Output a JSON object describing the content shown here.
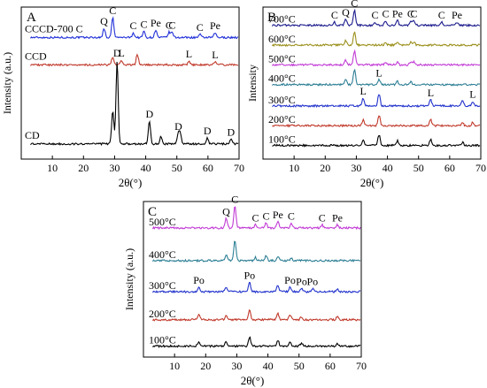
{
  "figure": {
    "panels": [
      {
        "letter": "A"
      },
      {
        "letter": "B"
      },
      {
        "letter": "C"
      }
    ]
  },
  "chart_data": [
    {
      "panel": "A",
      "type": "line",
      "xlabel": "2θ(°)",
      "ylabel": "Intensity (a.u.)",
      "xlim": [
        0,
        70
      ],
      "xticks": [
        10,
        20,
        30,
        40,
        50,
        60,
        70
      ],
      "series": [
        {
          "name": "CCCD-700 C",
          "color": "#1f2fd8",
          "baseline": 0.8,
          "peaks": [
            {
              "x": 26.6,
              "h": 0.06,
              "label": "Q"
            },
            {
              "x": 29.4,
              "h": 0.13,
              "label": "C"
            },
            {
              "x": 36.0,
              "h": 0.03,
              "label": "C"
            },
            {
              "x": 39.4,
              "h": 0.04,
              "label": "C"
            },
            {
              "x": 43.2,
              "h": 0.05,
              "label": "Pe"
            },
            {
              "x": 47.5,
              "h": 0.035,
              "label": "C"
            },
            {
              "x": 48.5,
              "h": 0.035,
              "label": "C"
            },
            {
              "x": 57.4,
              "h": 0.02,
              "label": "C"
            },
            {
              "x": 62.3,
              "h": 0.03,
              "label": "Pe"
            }
          ]
        },
        {
          "name": "CCD",
          "color": "#c0392b",
          "baseline": 0.62,
          "peaks": [
            {
              "x": 29.4,
              "h": 0.05
            },
            {
              "x": 32.2,
              "h": 0.03,
              "label": "L"
            },
            {
              "x": 37.3,
              "h": 0.07
            },
            {
              "x": 53.9,
              "h": 0.025,
              "label": "L"
            },
            {
              "x": 62.3,
              "h": 0.02,
              "label": "L"
            }
          ]
        },
        {
          "name": "CD",
          "color": "#000000",
          "baseline": 0.1,
          "peaks": [
            {
              "x": 29.4,
              "h": 0.22
            },
            {
              "x": 30.8,
              "h": 0.55,
              "label": "D"
            },
            {
              "x": 41.2,
              "h": 0.15,
              "label": "D"
            },
            {
              "x": 44.9,
              "h": 0.05
            },
            {
              "x": 50.5,
              "h": 0.07,
              "label": "D"
            },
            {
              "x": 51.1,
              "h": 0.06
            },
            {
              "x": 59.8,
              "h": 0.04,
              "label": "D"
            },
            {
              "x": 67.4,
              "h": 0.03,
              "label": "D"
            }
          ]
        }
      ],
      "curve_labels": [
        {
          "text": "CCCD-700 C",
          "series": 0
        },
        {
          "text": "CCD",
          "series": 1
        },
        {
          "text": "CD",
          "series": 2
        }
      ]
    },
    {
      "panel": "B",
      "type": "line",
      "xlabel": "2θ(°)",
      "ylabel": "Intensity",
      "xlim": [
        0,
        70
      ],
      "xticks": [
        10,
        20,
        30,
        40,
        50,
        60,
        70
      ],
      "series": [
        {
          "name": "700°C",
          "color": "#1a1a8c",
          "baseline": 0.88,
          "peaks": [
            {
              "x": 23.0,
              "h": 0.02,
              "label": "C"
            },
            {
              "x": 26.6,
              "h": 0.04,
              "label": "Q"
            },
            {
              "x": 29.4,
              "h": 0.1,
              "label": "C"
            },
            {
              "x": 36.0,
              "h": 0.02,
              "label": "C"
            },
            {
              "x": 39.4,
              "h": 0.03,
              "label": "C"
            },
            {
              "x": 43.2,
              "h": 0.03,
              "label": "Pe"
            },
            {
              "x": 47.5,
              "h": 0.03,
              "label": "C"
            },
            {
              "x": 48.5,
              "h": 0.03,
              "label": "C"
            },
            {
              "x": 57.4,
              "h": 0.02,
              "label": "C"
            },
            {
              "x": 62.3,
              "h": 0.02,
              "label": "Pe"
            }
          ]
        },
        {
          "name": "600°C",
          "color": "#9a8f1a",
          "baseline": 0.75,
          "peaks": [
            {
              "x": 26.6,
              "h": 0.03
            },
            {
              "x": 29.4,
              "h": 0.09
            },
            {
              "x": 39.4,
              "h": 0.02
            },
            {
              "x": 43.2,
              "h": 0.02
            },
            {
              "x": 47.5,
              "h": 0.02
            },
            {
              "x": 48.5,
              "h": 0.02
            }
          ]
        },
        {
          "name": "500°C",
          "color": "#c23bd6",
          "baseline": 0.62,
          "peaks": [
            {
              "x": 26.6,
              "h": 0.03
            },
            {
              "x": 29.4,
              "h": 0.09
            },
            {
              "x": 39.4,
              "h": 0.02
            },
            {
              "x": 43.2,
              "h": 0.02
            },
            {
              "x": 47.5,
              "h": 0.02
            },
            {
              "x": 48.5,
              "h": 0.02
            }
          ]
        },
        {
          "name": "400°C",
          "color": "#2d7f95",
          "baseline": 0.49,
          "peaks": [
            {
              "x": 26.6,
              "h": 0.04
            },
            {
              "x": 29.4,
              "h": 0.1
            },
            {
              "x": 37.3,
              "h": 0.03,
              "label": "L"
            },
            {
              "x": 43.2,
              "h": 0.02
            },
            {
              "x": 47.5,
              "h": 0.02
            }
          ]
        },
        {
          "name": "300°C",
          "color": "#2233cc",
          "baseline": 0.35,
          "peaks": [
            {
              "x": 32.2,
              "h": 0.05,
              "label": "L"
            },
            {
              "x": 37.3,
              "h": 0.08
            },
            {
              "x": 53.9,
              "h": 0.04,
              "label": "L"
            },
            {
              "x": 64.1,
              "h": 0.03
            },
            {
              "x": 67.4,
              "h": 0.03,
              "label": "L"
            }
          ]
        },
        {
          "name": "200°C",
          "color": "#c0392b",
          "baseline": 0.22,
          "peaks": [
            {
              "x": 32.2,
              "h": 0.04
            },
            {
              "x": 37.3,
              "h": 0.07
            },
            {
              "x": 53.9,
              "h": 0.04
            },
            {
              "x": 64.1,
              "h": 0.02
            },
            {
              "x": 67.4,
              "h": 0.02
            }
          ]
        },
        {
          "name": "100°C",
          "color": "#000000",
          "baseline": 0.09,
          "peaks": [
            {
              "x": 32.2,
              "h": 0.04
            },
            {
              "x": 37.3,
              "h": 0.07
            },
            {
              "x": 43.2,
              "h": 0.03
            },
            {
              "x": 53.9,
              "h": 0.04
            },
            {
              "x": 64.1,
              "h": 0.02
            }
          ]
        }
      ]
    },
    {
      "panel": "C",
      "type": "line",
      "xlabel": "2θ(°)",
      "ylabel": "Intensity (a.u.)",
      "xlim": [
        0,
        70
      ],
      "xticks": [
        10,
        20,
        30,
        40,
        50,
        60,
        70
      ],
      "series": [
        {
          "name": "500°C",
          "color": "#c23bd6",
          "baseline": 0.83,
          "peaks": [
            {
              "x": 26.6,
              "h": 0.06,
              "label": "Q"
            },
            {
              "x": 29.4,
              "h": 0.14,
              "label": "C"
            },
            {
              "x": 36.0,
              "h": 0.02,
              "label": "C"
            },
            {
              "x": 39.4,
              "h": 0.03,
              "label": "C"
            },
            {
              "x": 43.2,
              "h": 0.04,
              "label": "Pe"
            },
            {
              "x": 47.5,
              "h": 0.03,
              "label": "C"
            },
            {
              "x": 57.4,
              "h": 0.02,
              "label": "C"
            },
            {
              "x": 62.3,
              "h": 0.02,
              "label": "Pe"
            }
          ]
        },
        {
          "name": "400°C",
          "color": "#2d7f95",
          "baseline": 0.62,
          "peaks": [
            {
              "x": 26.6,
              "h": 0.04
            },
            {
              "x": 29.4,
              "h": 0.13
            },
            {
              "x": 36.0,
              "h": 0.02
            },
            {
              "x": 39.4,
              "h": 0.03
            },
            {
              "x": 43.2,
              "h": 0.03
            },
            {
              "x": 47.5,
              "h": 0.02
            }
          ]
        },
        {
          "name": "300°C",
          "color": "#2233cc",
          "baseline": 0.42,
          "peaks": [
            {
              "x": 17.8,
              "h": 0.03,
              "label": "Po"
            },
            {
              "x": 26.6,
              "h": 0.03
            },
            {
              "x": 34.1,
              "h": 0.06,
              "label": "Po"
            },
            {
              "x": 43.2,
              "h": 0.04
            },
            {
              "x": 47.1,
              "h": 0.03,
              "label": "Po"
            },
            {
              "x": 50.8,
              "h": 0.02,
              "label": "Po"
            },
            {
              "x": 54.3,
              "h": 0.02,
              "label": "Po"
            },
            {
              "x": 62.3,
              "h": 0.02
            }
          ]
        },
        {
          "name": "200°C",
          "color": "#c0392b",
          "baseline": 0.24,
          "peaks": [
            {
              "x": 17.8,
              "h": 0.03
            },
            {
              "x": 26.6,
              "h": 0.03
            },
            {
              "x": 34.1,
              "h": 0.06
            },
            {
              "x": 43.2,
              "h": 0.04
            },
            {
              "x": 47.1,
              "h": 0.03
            },
            {
              "x": 50.8,
              "h": 0.02
            },
            {
              "x": 62.3,
              "h": 0.02
            }
          ]
        },
        {
          "name": "100°C",
          "color": "#000000",
          "baseline": 0.07,
          "peaks": [
            {
              "x": 17.8,
              "h": 0.03
            },
            {
              "x": 26.6,
              "h": 0.03
            },
            {
              "x": 34.1,
              "h": 0.06
            },
            {
              "x": 43.2,
              "h": 0.04
            },
            {
              "x": 47.1,
              "h": 0.03
            },
            {
              "x": 50.8,
              "h": 0.02
            },
            {
              "x": 62.3,
              "h": 0.02
            }
          ]
        }
      ]
    }
  ]
}
